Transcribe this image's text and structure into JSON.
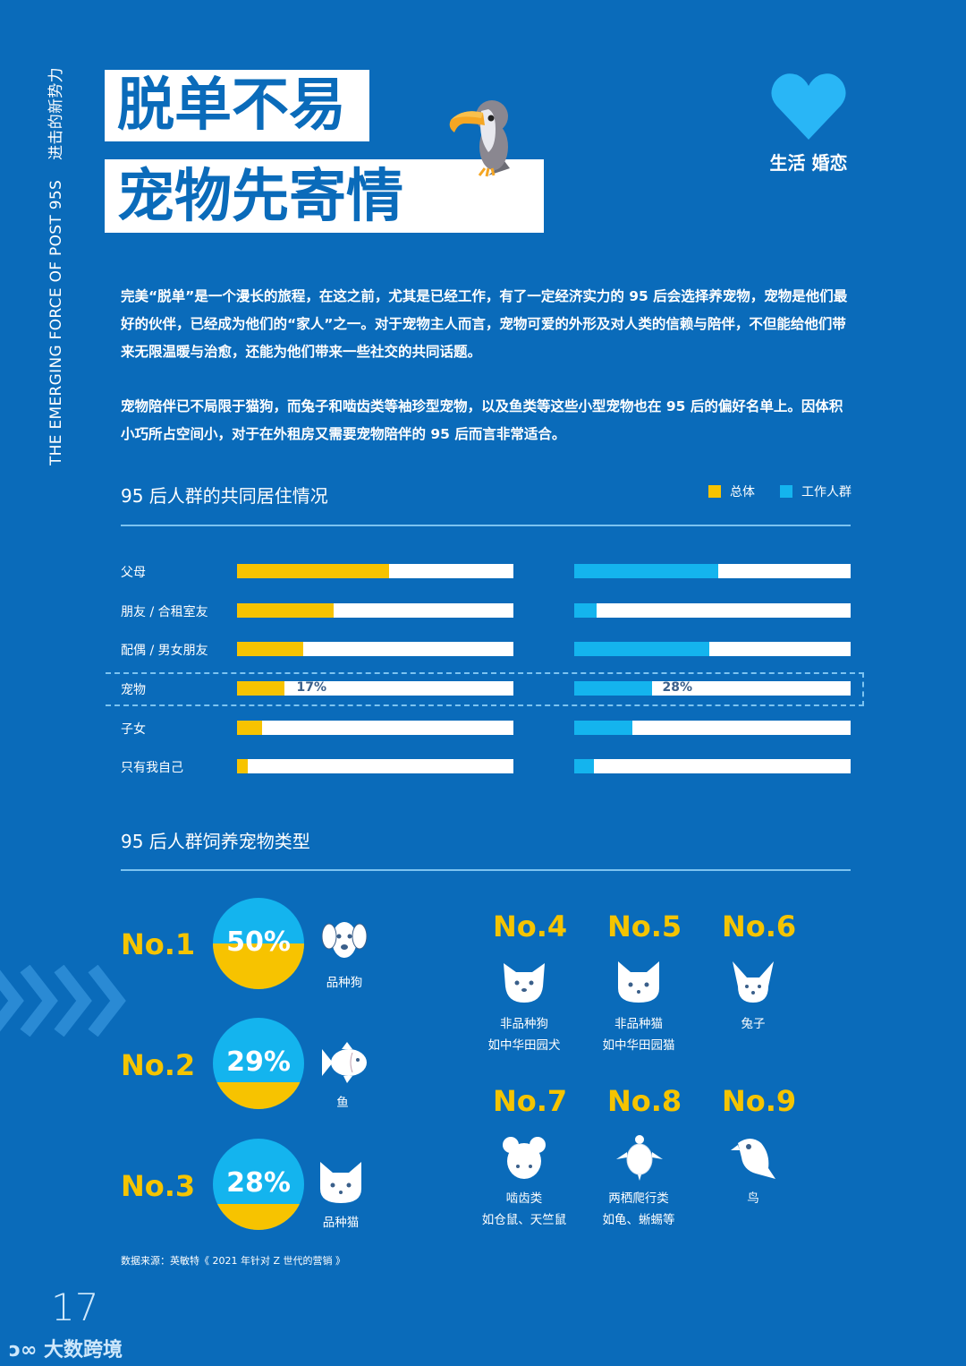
{
  "side_label": {
    "en": "THE EMERGING FORCE OF POST 95S",
    "cn": "进击的新势力"
  },
  "title": {
    "line1": "脱单不易",
    "line2": "宠物先寄情"
  },
  "category_badge": {
    "icon": "heart-icon",
    "label": "生活 婚恋",
    "color": "#29b6f6"
  },
  "paragraphs": [
    "完美“脱单”是一个漫长的旅程，在这之前，尤其是已经工作，有了一定经济实力的 95 后会选择养宠物，宠物是他们最好的伙伴，已经成为他们的“家人”之一。对于宠物主人而言，宠物可爱的外形及对人类的信赖与陪伴，不但能给他们带来无限温暖与治愈，还能为他们带来一些社交的共同话题。",
    "宠物陪伴已不局限于猫狗，而兔子和啮齿类等袖珍型宠物，以及鱼类等这些小型宠物也在 95 后的偏好名单上。因体积小巧所占空间小，对于在外租房又需要宠物陪伴的 95 后而言非常适合。"
  ],
  "colors": {
    "background": "#0a6bba",
    "overall": "#f7c300",
    "working": "#14b4ee",
    "bar_bg": "#ffffff"
  },
  "chart_data": [
    {
      "type": "bar",
      "orientation": "horizontal",
      "title": "95 后人群的共同居住情况",
      "categories": [
        "父母",
        "朋友 / 合租室友",
        "配偶 / 男女朋友",
        "宠物",
        "子女",
        "只有我自己"
      ],
      "series": [
        {
          "name": "总体",
          "color": "#f7c300",
          "values": [
            55,
            35,
            24,
            17,
            9,
            4
          ]
        },
        {
          "name": "工作人群",
          "color": "#14b4ee",
          "values": [
            52,
            8,
            49,
            28,
            21,
            7
          ]
        }
      ],
      "annotations": [
        {
          "category": "宠物",
          "总体": "17%",
          "工作人群": "28%",
          "highlighted": true
        }
      ],
      "legend_position": "top-right",
      "xlim": [
        0,
        100
      ]
    },
    {
      "type": "table",
      "title": "95 后人群饲养宠物类型",
      "rows": [
        {
          "rank": "No.1",
          "pct": 50,
          "pct_label": "50%",
          "name": "品种狗",
          "icon": "dog-icon"
        },
        {
          "rank": "No.2",
          "pct": 29,
          "pct_label": "29%",
          "name": "鱼",
          "icon": "fish-icon"
        },
        {
          "rank": "No.3",
          "pct": 28,
          "pct_label": "28%",
          "name": "品种猫",
          "icon": "cat-icon"
        },
        {
          "rank": "No.4",
          "name": "非品种狗",
          "sub": "如中华田园犬",
          "icon": "dog-icon"
        },
        {
          "rank": "No.5",
          "name": "非品种猫",
          "sub": "如中华田园猫",
          "icon": "cat-icon"
        },
        {
          "rank": "No.6",
          "name": "兔子",
          "sub": "",
          "icon": "rabbit-icon"
        },
        {
          "rank": "No.7",
          "name": "啮齿类",
          "sub": "如仓鼠、天竺鼠",
          "icon": "mouse-icon"
        },
        {
          "rank": "No.8",
          "name": "两栖爬行类",
          "sub": "如龟、蜥蜴等",
          "icon": "turtle-icon"
        },
        {
          "rank": "No.9",
          "name": "鸟",
          "sub": "",
          "icon": "bird-icon"
        }
      ]
    }
  ],
  "chart1": {
    "title": "95 后人群的共同居住情况",
    "legend": [
      "总体",
      "工作人群"
    ],
    "rows": [
      {
        "label": "父母",
        "overall": 55,
        "working": 52,
        "overall_label": "",
        "working_label": ""
      },
      {
        "label": "朋友 / 合租室友",
        "overall": 35,
        "working": 8,
        "overall_label": "",
        "working_label": ""
      },
      {
        "label": "配偶 / 男女朋友",
        "overall": 24,
        "working": 49,
        "overall_label": "",
        "working_label": ""
      },
      {
        "label": "宠物",
        "overall": 17,
        "working": 28,
        "overall_label": "17%",
        "working_label": "28%"
      },
      {
        "label": "子女",
        "overall": 9,
        "working": 21,
        "overall_label": "",
        "working_label": ""
      },
      {
        "label": "只有我自己",
        "overall": 4,
        "working": 7,
        "overall_label": "",
        "working_label": ""
      }
    ]
  },
  "chart2": {
    "title": "95 后人群饲养宠物类型",
    "top": [
      {
        "rank": "No.1",
        "pct": "50%",
        "name": "品种狗"
      },
      {
        "rank": "No.2",
        "pct": "29%",
        "name": "鱼"
      },
      {
        "rank": "No.3",
        "pct": "28%",
        "name": "品种猫"
      }
    ],
    "others": [
      {
        "rank": "No.4",
        "name": "非品种狗",
        "sub": "如中华田园犬"
      },
      {
        "rank": "No.5",
        "name": "非品种猫",
        "sub": "如中华田园猫"
      },
      {
        "rank": "No.6",
        "name": "兔子",
        "sub": ""
      },
      {
        "rank": "No.7",
        "name": "啮齿类",
        "sub": "如仓鼠、天竺鼠"
      },
      {
        "rank": "No.8",
        "name": "两栖爬行类",
        "sub": "如龟、蜥蜴等"
      },
      {
        "rank": "No.9",
        "name": "鸟",
        "sub": ""
      }
    ]
  },
  "source": "数据来源：英敏特《 2021 年针对 Z 世代的营销 》",
  "page_number": "17",
  "watermark": "大数跨境"
}
